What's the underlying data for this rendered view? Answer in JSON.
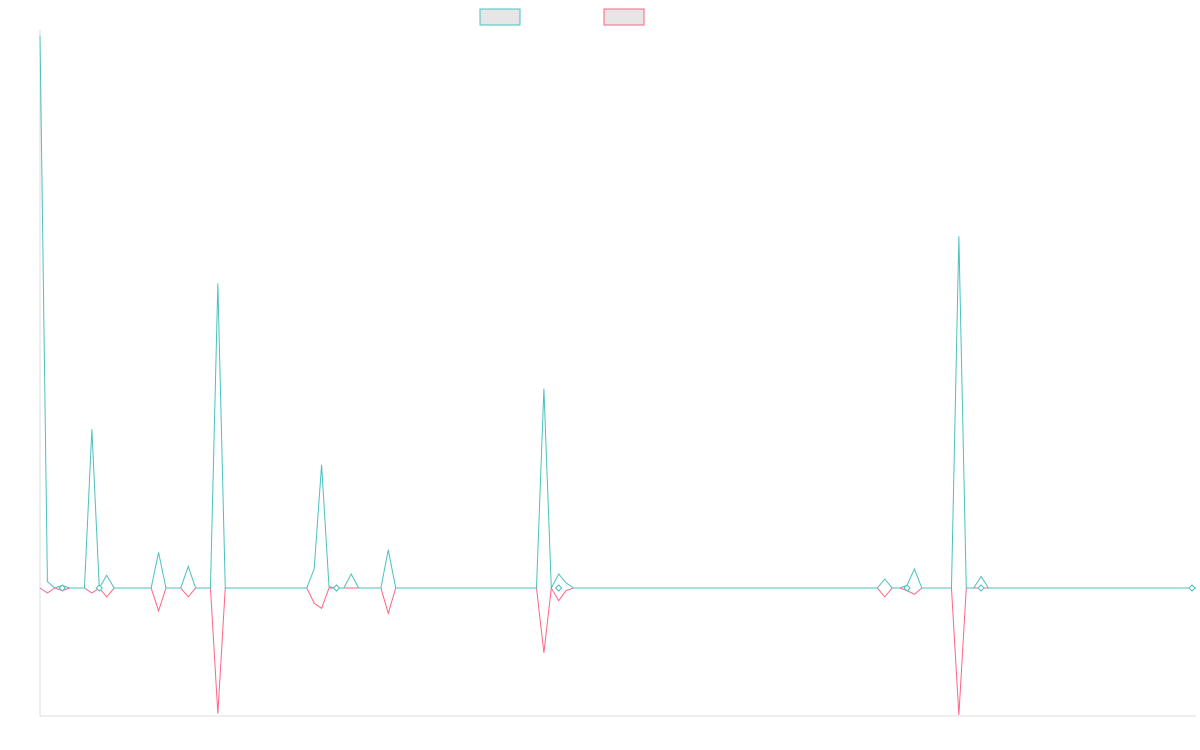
{
  "chart_data": {
    "type": "line",
    "x_count": 157,
    "ylim": [
      -1.0,
      4.35
    ],
    "series": [
      {
        "color": "#4bc0c0",
        "fill": "#e6e6e6",
        "points": [
          [
            0,
            4.35
          ],
          [
            1,
            0.05
          ],
          [
            2,
            0
          ],
          [
            3,
            0.02
          ],
          [
            4,
            0
          ],
          [
            5,
            0
          ],
          [
            6,
            0
          ],
          [
            7,
            1.25
          ],
          [
            8,
            0
          ],
          [
            9,
            0.1
          ],
          [
            10,
            0
          ],
          [
            15,
            0
          ],
          [
            16,
            0.28
          ],
          [
            17,
            0
          ],
          [
            18,
            0
          ],
          [
            19,
            0
          ],
          [
            20,
            0.17
          ],
          [
            21,
            0
          ],
          [
            22,
            0
          ],
          [
            23,
            0
          ],
          [
            24,
            2.4
          ],
          [
            25,
            0
          ],
          [
            36,
            0
          ],
          [
            37,
            0.15
          ],
          [
            38,
            0.97
          ],
          [
            39,
            0.01
          ],
          [
            40,
            0
          ],
          [
            41,
            0
          ],
          [
            42,
            0.11
          ],
          [
            43,
            0
          ],
          [
            44,
            0
          ],
          [
            45,
            0
          ],
          [
            46,
            0
          ],
          [
            47,
            0.3
          ],
          [
            48,
            0
          ],
          [
            67,
            0
          ],
          [
            68,
            1.57
          ],
          [
            69,
            0
          ],
          [
            70,
            0.11
          ],
          [
            71,
            0.04
          ],
          [
            72,
            0
          ],
          [
            113,
            0
          ],
          [
            114,
            0.07
          ],
          [
            115,
            0
          ],
          [
            116,
            0
          ],
          [
            117,
            0.02
          ],
          [
            118,
            0.15
          ],
          [
            119,
            0
          ],
          [
            120,
            0
          ],
          [
            121,
            0
          ],
          [
            122,
            0
          ],
          [
            123,
            0
          ],
          [
            124,
            2.77
          ],
          [
            125,
            0
          ],
          [
            126,
            0
          ],
          [
            127,
            0.09
          ],
          [
            128,
            0
          ],
          [
            156,
            0
          ]
        ]
      },
      {
        "color": "#ff6384",
        "fill": "#e6e6e6",
        "points": [
          [
            0,
            0
          ],
          [
            1,
            -0.04
          ],
          [
            2,
            0
          ],
          [
            3,
            -0.02
          ],
          [
            4,
            0
          ],
          [
            5,
            0
          ],
          [
            6,
            0
          ],
          [
            7,
            -0.04
          ],
          [
            8,
            0
          ],
          [
            9,
            -0.07
          ],
          [
            10,
            0
          ],
          [
            15,
            0
          ],
          [
            16,
            -0.18
          ],
          [
            17,
            0
          ],
          [
            18,
            0
          ],
          [
            19,
            0
          ],
          [
            20,
            -0.07
          ],
          [
            21,
            0
          ],
          [
            22,
            0
          ],
          [
            23,
            0
          ],
          [
            24,
            -0.99
          ],
          [
            25,
            0
          ],
          [
            36,
            0
          ],
          [
            37,
            -0.12
          ],
          [
            38,
            -0.16
          ],
          [
            39,
            0
          ],
          [
            40,
            0
          ],
          [
            41,
            0
          ],
          [
            42,
            0
          ],
          [
            43,
            0
          ],
          [
            44,
            0
          ],
          [
            45,
            0
          ],
          [
            46,
            0
          ],
          [
            47,
            -0.2
          ],
          [
            48,
            0
          ],
          [
            67,
            0
          ],
          [
            68,
            -0.51
          ],
          [
            69,
            0
          ],
          [
            70,
            -0.1
          ],
          [
            71,
            -0.02
          ],
          [
            72,
            0
          ],
          [
            113,
            0
          ],
          [
            114,
            -0.07
          ],
          [
            115,
            0
          ],
          [
            116,
            0
          ],
          [
            117,
            -0.02
          ],
          [
            118,
            -0.05
          ],
          [
            119,
            0
          ],
          [
            120,
            0
          ],
          [
            121,
            0
          ],
          [
            122,
            0
          ],
          [
            123,
            0
          ],
          [
            124,
            -1.0
          ],
          [
            125,
            0
          ],
          [
            156,
            0
          ]
        ]
      }
    ],
    "markers": [
      {
        "x": 3,
        "y": 0
      },
      {
        "x": 8,
        "y": 0
      },
      {
        "x": 40,
        "y": 0
      },
      {
        "x": 70,
        "y": 0
      },
      {
        "x": 117,
        "y": 0
      },
      {
        "x": 127,
        "y": 0
      },
      {
        "x": 160,
        "y": 0
      }
    ],
    "legend_position": "top-center",
    "grid": false
  }
}
